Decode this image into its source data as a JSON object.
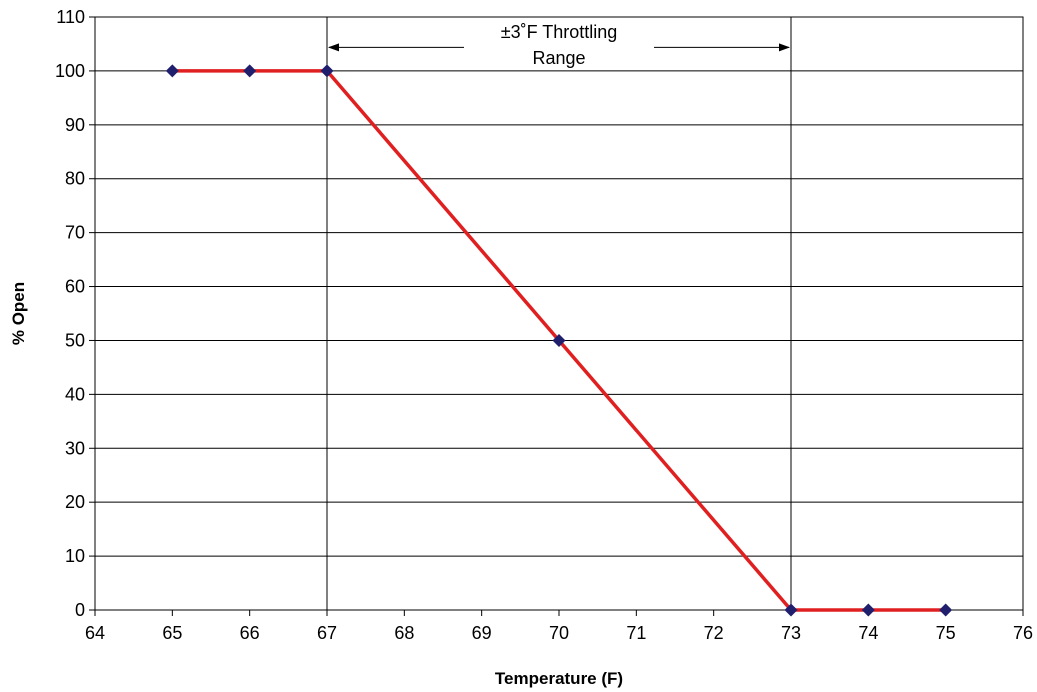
{
  "colors": {
    "line": "#e02020",
    "marker": "#1f1f6e",
    "grid": "#000000",
    "background": "#ffffff"
  },
  "chart_data": {
    "type": "line",
    "title": "",
    "xlabel": "Temperature (F)",
    "ylabel": "% Open",
    "xlim": [
      64,
      76
    ],
    "ylim": [
      0,
      110
    ],
    "xticks": [
      64,
      65,
      66,
      67,
      68,
      69,
      70,
      71,
      72,
      73,
      74,
      75,
      76
    ],
    "yticks": [
      0,
      10,
      20,
      30,
      40,
      50,
      60,
      70,
      80,
      90,
      100,
      110
    ],
    "grid": "horizontal",
    "series": [
      {
        "name": "",
        "x": [
          65,
          66,
          67,
          70,
          73,
          74,
          75
        ],
        "y": [
          100,
          100,
          100,
          50,
          0,
          0,
          0
        ],
        "marker": "diamond"
      }
    ],
    "reference_lines": [
      {
        "axis": "x",
        "value": 67
      },
      {
        "axis": "x",
        "value": 73
      }
    ],
    "annotation": {
      "line1": "±3˚F Throttling",
      "line2": "Range",
      "range": [
        67,
        73
      ],
      "y": 104
    }
  }
}
